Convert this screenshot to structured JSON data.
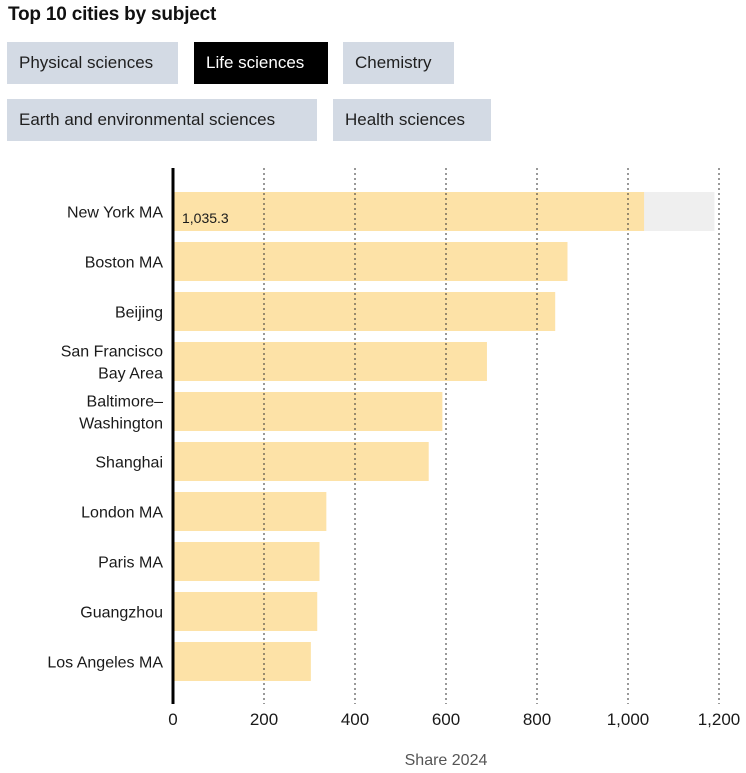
{
  "title": "Top 10 cities by subject",
  "tabs": [
    {
      "label": "Physical sciences",
      "active": false
    },
    {
      "label": "Life sciences",
      "active": true
    },
    {
      "label": "Chemistry",
      "active": false
    },
    {
      "label": "Earth and environmental sciences",
      "active": false
    },
    {
      "label": "Health sciences",
      "active": false
    }
  ],
  "colors": {
    "bar": "#fde2a7",
    "max_band": "#efefef",
    "axis": "#000000",
    "grid": "#333333",
    "tab_bg": "#d3dae4",
    "tab_active_bg": "#000000"
  },
  "chart_data": {
    "type": "bar",
    "orientation": "horizontal",
    "title": "Top 10 cities by subject",
    "xlabel": "Share 2024",
    "ylabel": "",
    "xlim": [
      0,
      1200
    ],
    "xticks": [
      0,
      200,
      400,
      600,
      800,
      1000,
      1200
    ],
    "xtick_labels": [
      "0",
      "200",
      "400",
      "600",
      "800",
      "1,000",
      "1,200"
    ],
    "grid": "vertical dotted",
    "categories": [
      [
        "New York MA"
      ],
      [
        "Boston MA"
      ],
      [
        "Beijing"
      ],
      [
        "San Francisco",
        "Bay Area"
      ],
      [
        "Baltimore–",
        "Washington"
      ],
      [
        "Shanghai"
      ],
      [
        "London MA"
      ],
      [
        "Paris MA"
      ],
      [
        "Guangzhou"
      ],
      [
        "Los Angeles MA"
      ]
    ],
    "values": [
      1035.3,
      867,
      840,
      690,
      592,
      562,
      337,
      322,
      317,
      303
    ],
    "data_labels": [
      "1,035.3",
      "",
      "",
      "",
      "",
      "",
      "",
      "",
      "",
      ""
    ],
    "background_band": {
      "row": 0,
      "to": 1190
    }
  }
}
